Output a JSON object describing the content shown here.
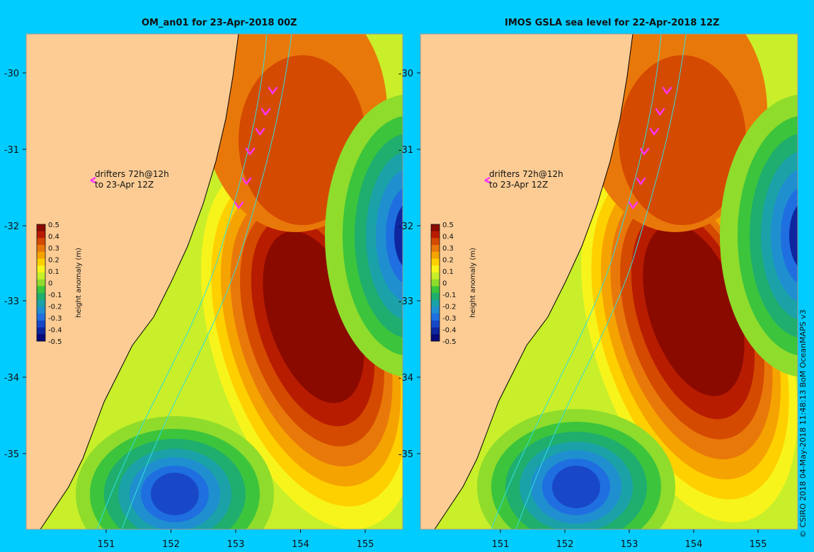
{
  "panels": [
    {
      "title": "OM_an01 for 23-Apr-2018 00Z",
      "drifter_label_line1": "drifters 72h@12h",
      "drifter_label_line2": "to 23-Apr 12Z"
    },
    {
      "title": "IMOS GSLA sea level  for 22-Apr-2018 12Z",
      "drifter_label_line1": "drifters 72h@12h",
      "drifter_label_line2": "to 23-Apr 12Z"
    }
  ],
  "axes": {
    "lon_ticks": [
      "151",
      "152",
      "153",
      "154",
      "155"
    ],
    "lat_ticks": [
      "-30",
      "-31",
      "-32",
      "-33",
      "-34",
      "-35"
    ]
  },
  "colorbar": {
    "label": "height anomaly (m)",
    "ticks": [
      "0.5",
      "0.4",
      "0.3",
      "0.2",
      "0.1",
      "0",
      "-0.1",
      "-0.2",
      "-0.3",
      "-0.4",
      "-0.5"
    ],
    "colors": [
      "#8b0a00",
      "#b81c00",
      "#d44a00",
      "#e9780a",
      "#f5a300",
      "#ffd000",
      "#f7f41c",
      "#c8ef2a",
      "#8fdc2c",
      "#3cc43c",
      "#1fae6e",
      "#1aa2a8",
      "#1f8fd0",
      "#1f6fe0",
      "#1848c8",
      "#0e26a0",
      "#070a78"
    ]
  },
  "credit": "© CSIRO 2018  04-May-2018 11:48:13 BoM OceanMAPS v3",
  "colors": {
    "land": "#fccc94",
    "frame": "#00ccff",
    "drifter": "#ff33ff",
    "contour": "#33dddd"
  }
}
